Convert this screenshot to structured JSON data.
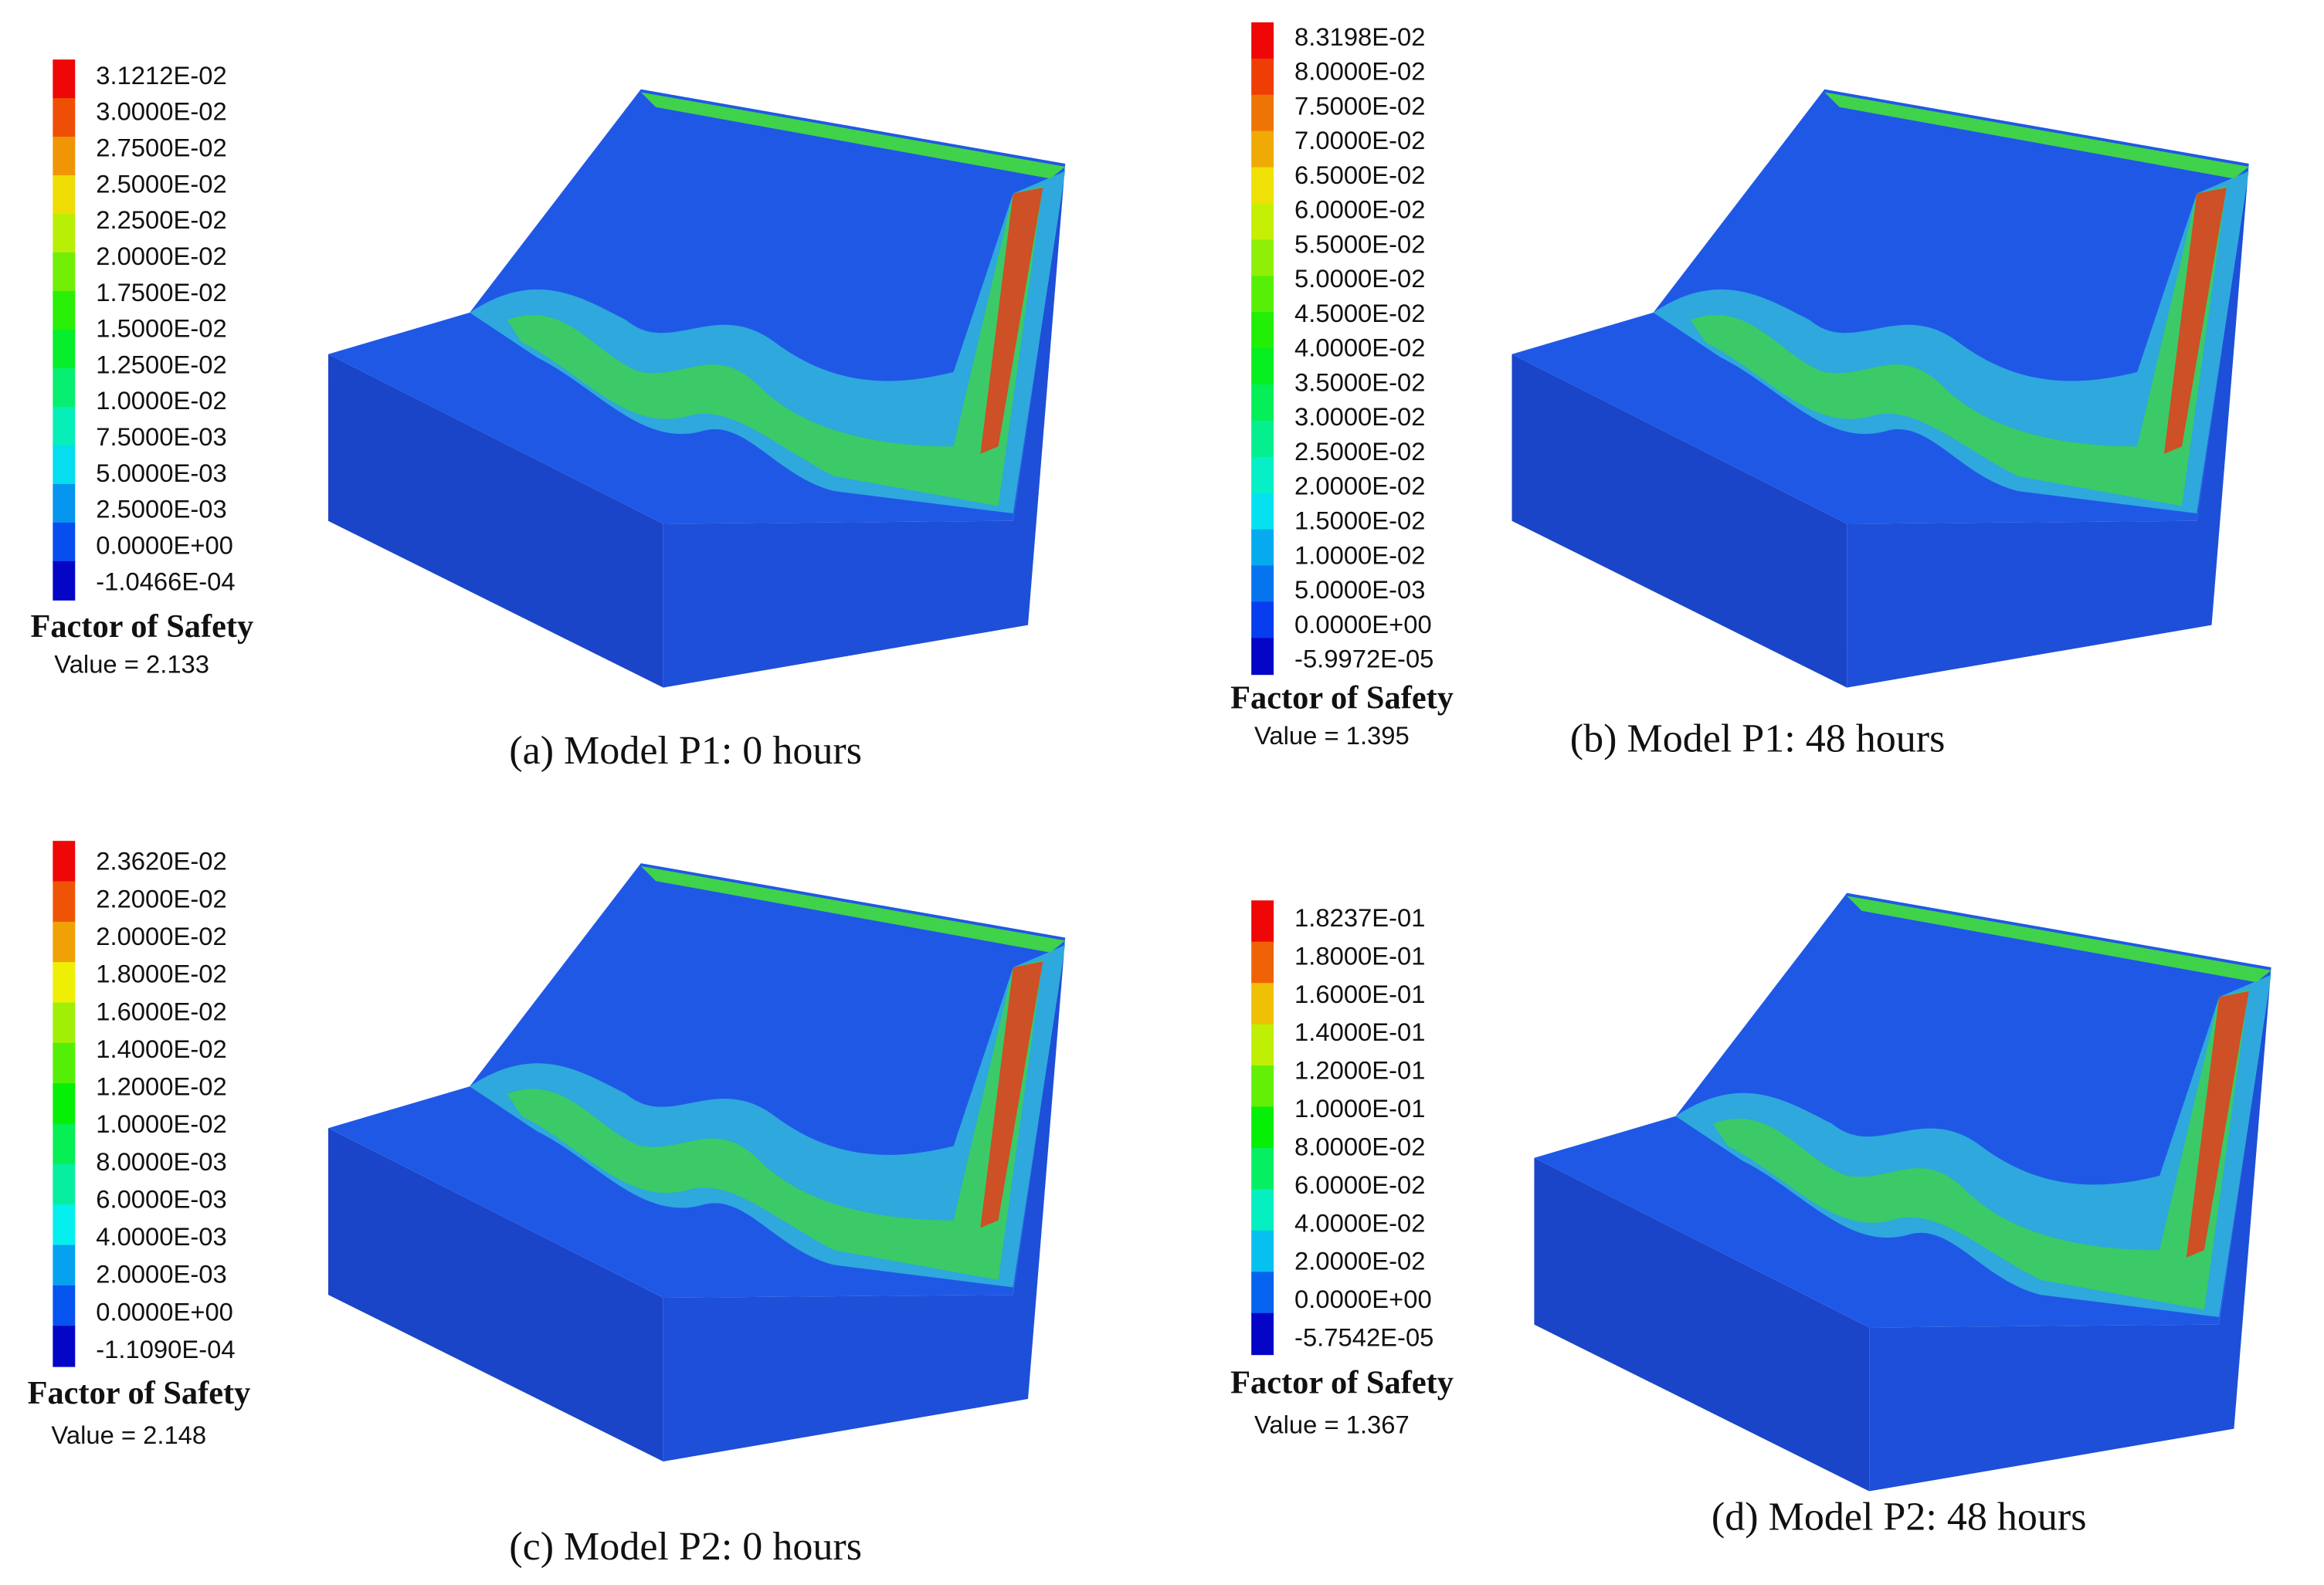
{
  "panels": [
    {
      "legend": {
        "labels": [
          "3.1212E-02",
          "3.0000E-02",
          "2.7500E-02",
          "2.5000E-02",
          "2.2500E-02",
          "2.0000E-02",
          "1.7500E-02",
          "1.5000E-02",
          "1.2500E-02",
          "1.0000E-02",
          "7.5000E-03",
          "5.0000E-03",
          "2.5000E-03",
          "0.0000E+00",
          "-1.0466E-04"
        ],
        "title": "Factor of Safety",
        "value": "Value = 2.133"
      },
      "caption": "(a) Model P1: 0 hours"
    },
    {
      "legend": {
        "labels": [
          "8.3198E-02",
          "8.0000E-02",
          "7.5000E-02",
          "7.0000E-02",
          "6.5000E-02",
          "6.0000E-02",
          "5.5000E-02",
          "5.0000E-02",
          "4.5000E-02",
          "4.0000E-02",
          "3.5000E-02",
          "3.0000E-02",
          "2.5000E-02",
          "2.0000E-02",
          "1.5000E-02",
          "1.0000E-02",
          "5.0000E-03",
          "0.0000E+00",
          "-5.9972E-05"
        ],
        "title": "Factor of Safety",
        "value": "Value = 1.395"
      },
      "caption": "(b) Model P1: 48 hours"
    },
    {
      "legend": {
        "labels": [
          "2.3620E-02",
          "2.2000E-02",
          "2.0000E-02",
          "1.8000E-02",
          "1.6000E-02",
          "1.4000E-02",
          "1.2000E-02",
          "1.0000E-02",
          "8.0000E-03",
          "6.0000E-03",
          "4.0000E-03",
          "2.0000E-03",
          "0.0000E+00",
          "-1.1090E-04"
        ],
        "title": "Factor of Safety",
        "value": "Value = 2.148"
      },
      "caption": "(c) Model P2: 0 hours"
    },
    {
      "legend": {
        "labels": [
          "1.8237E-01",
          "1.8000E-01",
          "1.6000E-01",
          "1.4000E-01",
          "1.2000E-01",
          "1.0000E-01",
          "8.0000E-02",
          "6.0000E-02",
          "4.0000E-02",
          "2.0000E-02",
          "0.0000E+00",
          "-5.7542E-05"
        ],
        "title": "Factor of Safety",
        "value": "Value = 1.367"
      },
      "caption": "(d) Model P2: 48 hours"
    }
  ]
}
